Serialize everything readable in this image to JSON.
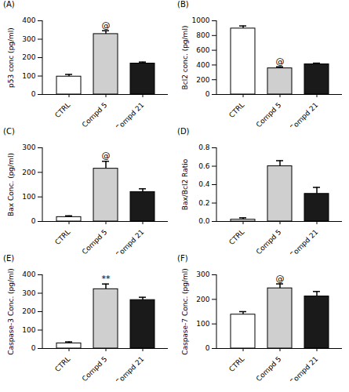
{
  "chart_data": [
    {
      "type": "bar",
      "title": "(A)",
      "y_label": "p53 conc (pg/ml)",
      "categories": [
        "CTRL",
        "Compd 5",
        "Compd 21"
      ],
      "values": [
        97,
        328,
        168
      ],
      "errors": [
        12,
        18,
        8
      ],
      "colors": [
        "#ffffff",
        "#cfcfcf",
        "#1a1a1a"
      ],
      "ylim": [
        0,
        400
      ],
      "yticks": [
        0,
        100,
        200,
        300,
        400
      ],
      "annotations": [
        {
          "category": "Compd 5",
          "text": "@"
        }
      ]
    },
    {
      "type": "bar",
      "title": "(B)",
      "y_label": "Bcl2 conc. (pg/ml)",
      "categories": [
        "CTRL",
        "Compd 5",
        "Compd 21"
      ],
      "values": [
        895,
        355,
        410
      ],
      "errors": [
        35,
        20,
        15
      ],
      "colors": [
        "#ffffff",
        "#cfcfcf",
        "#1a1a1a"
      ],
      "ylim": [
        0,
        1000
      ],
      "yticks": [
        0,
        200,
        400,
        600,
        800,
        1000
      ],
      "annotations": [
        {
          "category": "Compd 5",
          "text": "@"
        }
      ]
    },
    {
      "type": "bar",
      "title": "(C)",
      "y_label": "Bax Conc. (pg/ml)",
      "categories": [
        "CTRL",
        "Compd 5",
        "Compd 21"
      ],
      "values": [
        18,
        215,
        120
      ],
      "errors": [
        5,
        30,
        13
      ],
      "colors": [
        "#ffffff",
        "#cfcfcf",
        "#1a1a1a"
      ],
      "ylim": [
        0,
        300
      ],
      "yticks": [
        0,
        100,
        200,
        300
      ],
      "annotations": [
        {
          "category": "Compd 5",
          "text": "@"
        }
      ]
    },
    {
      "type": "bar",
      "title": "(D)",
      "y_label": "Bax/Bcl2 Ratio",
      "categories": [
        "CTRL",
        "Compd 5",
        "Compd 21"
      ],
      "values": [
        0.02,
        0.6,
        0.3
      ],
      "errors": [
        0.02,
        0.06,
        0.07
      ],
      "colors": [
        "#ffffff",
        "#cfcfcf",
        "#1a1a1a"
      ],
      "ylim": [
        0,
        0.8
      ],
      "yticks": [
        {
          "value": 0,
          "label": "0.0"
        },
        {
          "value": 0.2,
          "label": "0.2"
        },
        {
          "value": 0.4,
          "label": "0.4"
        },
        {
          "value": 0.6,
          "label": "0.6"
        },
        {
          "value": 0.8,
          "label": "0.8"
        }
      ],
      "annotations": []
    },
    {
      "type": "bar",
      "title": "(E)",
      "y_label": "Caspase-3 Conc. (pg/ml)",
      "categories": [
        "CTRL",
        "Compd 5",
        "Compd 21"
      ],
      "values": [
        28,
        322,
        263
      ],
      "errors": [
        8,
        28,
        15
      ],
      "colors": [
        "#ffffff",
        "#cfcfcf",
        "#1a1a1a"
      ],
      "ylim": [
        0,
        400
      ],
      "yticks": [
        0,
        100,
        200,
        300,
        400
      ],
      "annotations": [
        {
          "category": "Compd 5",
          "text": "**"
        }
      ]
    },
    {
      "type": "bar",
      "title": "(F)",
      "y_label": "Caspase-7 Conc. (pg/ml)",
      "categories": [
        "CTRL",
        "Compd 5",
        "Compd 21"
      ],
      "values": [
        138,
        245,
        212
      ],
      "errors": [
        12,
        18,
        20
      ],
      "colors": [
        "#ffffff",
        "#cfcfcf",
        "#1a1a1a"
      ],
      "ylim": [
        0,
        300
      ],
      "yticks": [
        0,
        100,
        200,
        300
      ],
      "annotations": [
        {
          "category": "Compd 5",
          "text": "@"
        }
      ]
    }
  ]
}
